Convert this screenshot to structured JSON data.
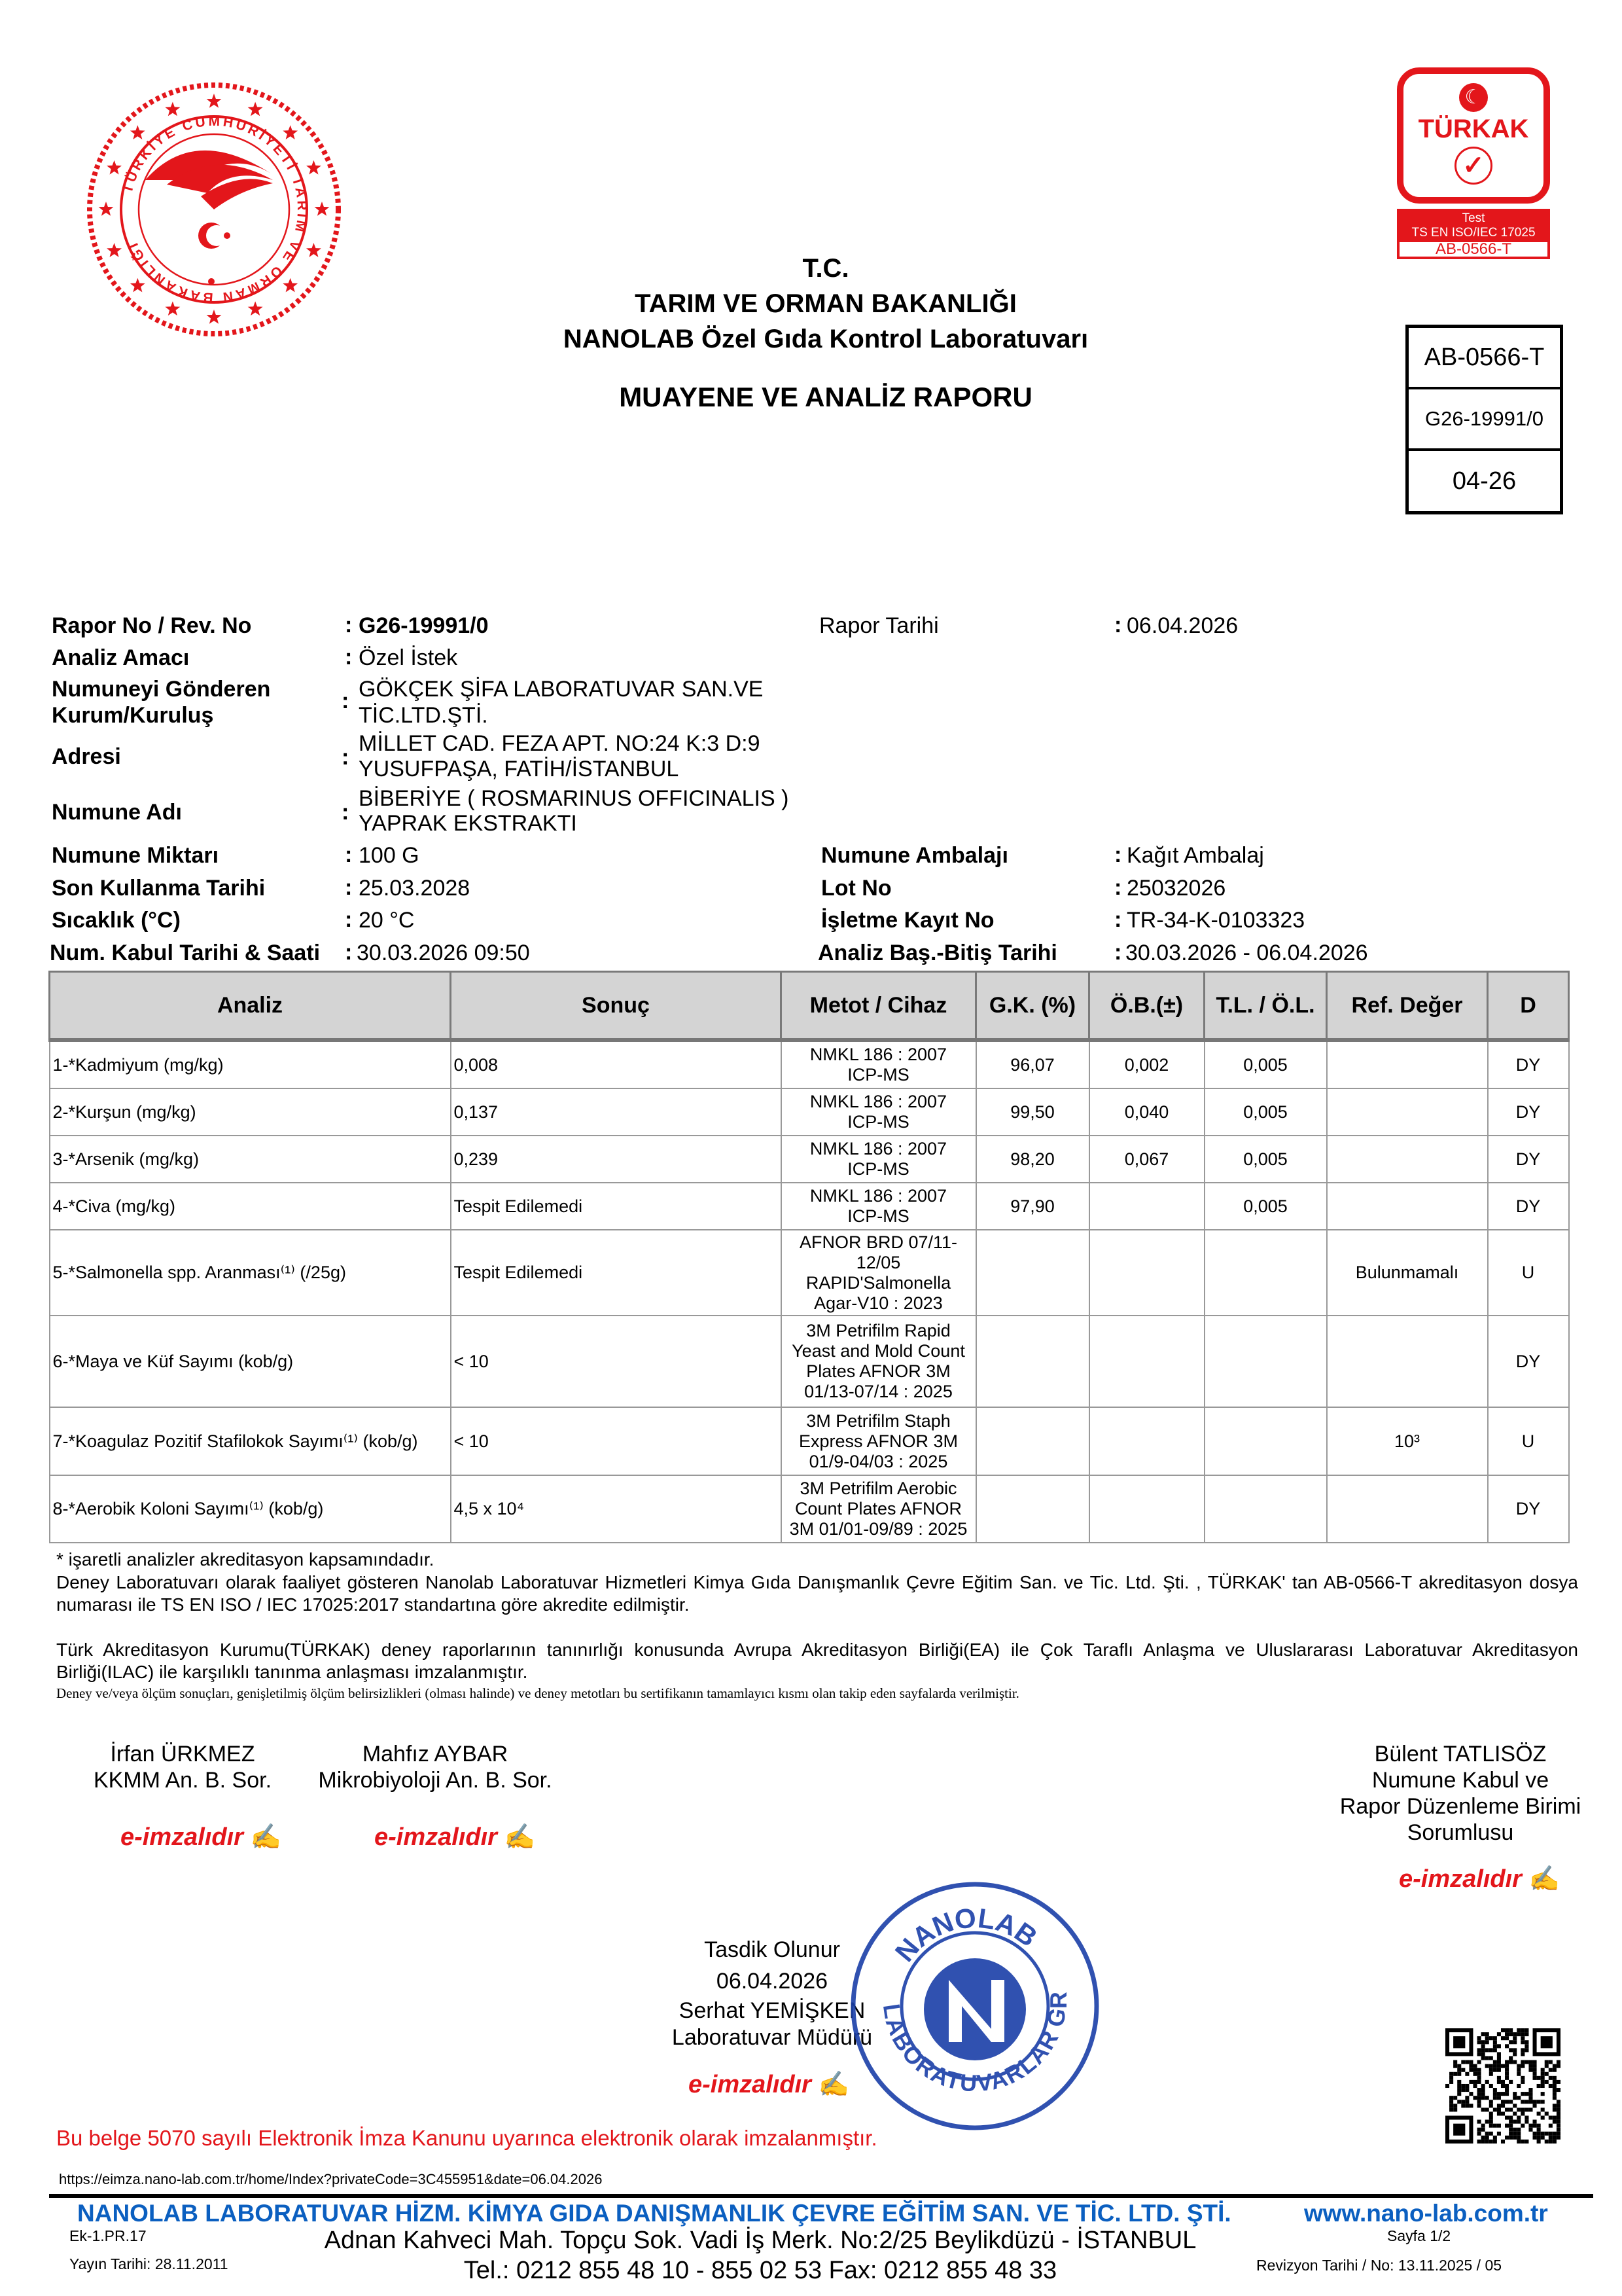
{
  "logos": {
    "ministry_seal_text": "TÜRKİYE CUMHURİYETİ TARIM VE ORMAN BAKANLIĞI",
    "turkak": {
      "brand": "TÜRKAK",
      "line1": "Test",
      "line2": "TS EN ISO/IEC 17025",
      "code": "AB-0566-T"
    },
    "stamp_text_top": "NANOLAB",
    "stamp_text_bottom": "LABORATUVARLAR GRUBU"
  },
  "header": {
    "line1": "T.C.",
    "line2": "TARIM VE ORMAN BAKANLIĞI",
    "line3": "NANOLAB Özel Gıda Kontrol Laboratuvarı",
    "report_title": "MUAYENE VE ANALİZ RAPORU"
  },
  "idbox": [
    "AB-0566-T",
    "G26-19991/0",
    "04-26"
  ],
  "info": {
    "rapor_no_label": "Rapor No / Rev. No",
    "rapor_no": "G26-19991/0",
    "rapor_tarihi_label": "Rapor Tarihi",
    "rapor_tarihi": "06.04.2026",
    "amac_label": "Analiz Amacı",
    "amac": "Özel İstek",
    "gonderen_label1": "Numuneyi Gönderen",
    "gonderen_label2": "Kurum/Kuruluş",
    "gonderen1": "GÖKÇEK ŞİFA LABORATUVAR SAN.VE",
    "gonderen2": "TİC.LTD.ŞTİ.",
    "adres_label": "Adresi",
    "adres1": "MİLLET CAD. FEZA APT. NO:24 K:3 D:9",
    "adres2": "YUSUFPAŞA, FATİH/İSTANBUL",
    "numune_adi_label": "Numune Adı",
    "numune_adi1": "BİBERİYE ( ROSMARINUS OFFICINALIS )",
    "numune_adi2": "YAPRAK EKSTRAKTI",
    "miktar_label": "Numune Miktarı",
    "miktar": "100 G",
    "ambalaj_label": "Numune Ambalajı",
    "ambalaj": "Kağıt Ambalaj",
    "skt_label": "Son Kullanma Tarihi",
    "skt": "25.03.2028",
    "lot_label": "Lot No",
    "lot": "25032026",
    "sicaklik_label": "Sıcaklık (°C)",
    "sicaklik": "20 °C",
    "isletme_label": "İşletme Kayıt No",
    "isletme": "TR-34-K-0103323",
    "kabul_label": "Num. Kabul Tarihi & Saati",
    "kabul": "30.03.2026 09:50",
    "analiz_tarih_label": "Analiz Baş.-Bitiş Tarihi",
    "analiz_tarih": "30.03.2026 - 06.04.2026"
  },
  "table": {
    "headers": [
      "Analiz",
      "Sonuç",
      "Metot / Cihaz",
      "G.K. (%)",
      "Ö.B.(±)",
      "T.L. / Ö.L.",
      "Ref. Değer",
      "D"
    ],
    "rows": [
      [
        "1-*Kadmiyum (mg/kg)",
        "0,008",
        "NMKL 186 : 2007\nICP-MS",
        "96,07",
        "0,002",
        "0,005",
        "",
        "DY"
      ],
      [
        "2-*Kurşun (mg/kg)",
        "0,137",
        "NMKL 186 : 2007\nICP-MS",
        "99,50",
        "0,040",
        "0,005",
        "",
        "DY"
      ],
      [
        "3-*Arsenik (mg/kg)",
        "0,239",
        "NMKL 186 : 2007\nICP-MS",
        "98,20",
        "0,067",
        "0,005",
        "",
        "DY"
      ],
      [
        "4-*Civa (mg/kg)",
        "Tespit Edilemedi",
        "NMKL 186 : 2007\nICP-MS",
        "97,90",
        "",
        "0,005",
        "",
        "DY"
      ],
      [
        "5-*Salmonella spp. Aranması⁽¹⁾ (/25g)",
        "Tespit  Edilemedi",
        "AFNOR BRD 07/11-\n12/05\nRAPID'Salmonella\nAgar-V10 : 2023",
        "",
        "",
        "",
        "Bulunmamalı",
        "U"
      ],
      [
        "6-*Maya ve Küf Sayımı (kob/g)",
        "< 10",
        "3M Petrifilm Rapid\nYeast and Mold Count\nPlates AFNOR 3M\n01/13-07/14 : 2025",
        "",
        "",
        "",
        "",
        "DY"
      ],
      [
        "7-*Koagulaz Pozitif Stafilokok Sayımı⁽¹⁾ (kob/g)",
        "< 10",
        "3M Petrifilm Staph\nExpress AFNOR 3M\n01/9-04/03 : 2025",
        "",
        "",
        "",
        "10³",
        "U"
      ],
      [
        "8-*Aerobik Koloni Sayımı⁽¹⁾ (kob/g)",
        "4,5 x 10⁴",
        "3M Petrifilm Aerobic\nCount Plates AFNOR\n3M 01/01-09/89 : 2025",
        "",
        "",
        "",
        "",
        "DY"
      ]
    ]
  },
  "notes": {
    "n1": "* işaretli analizler akreditasyon kapsamındadır.",
    "n2": "Deney Laboratuvarı olarak faaliyet gösteren Nanolab Laboratuvar Hizmetleri Kimya Gıda Danışmanlık Çevre Eğitim San. ve Tic. Ltd. Şti. , TÜRKAK' tan AB-0566-T akreditasyon dosya numarası ile TS EN ISO / IEC 17025:2017 standartına göre akredite edilmiştir.",
    "n3": "Türk Akreditasyon Kurumu(TÜRKAK) deney raporlarının tanınırlığı konusunda Avrupa Akreditasyon Birliği(EA) ile Çok Taraflı Anlaşma ve Uluslararası Laboratuvar Akreditasyon Birliği(ILAC) ile karşılıklı tanınma anlaşması imzalanmıştır.",
    "n4": "Deney ve/veya ölçüm sonuçları, genişletilmiş ölçüm belirsizlikleri (olması halinde) ve deney metotları bu sertifikanın tamamlayıcı kısmı olan takip eden sayfalarda verilmiştir."
  },
  "signatures": {
    "s1": [
      "İrfan ÜRKMEZ",
      "KKMM An. B. Sor."
    ],
    "s2": [
      "Mahfız AYBAR",
      "Mikrobiyoloji An. B. Sor."
    ],
    "s3": [
      "Bülent TATLISÖZ",
      "Numune Kabul ve",
      "Rapor Düzenleme Birimi",
      "Sorumlusu"
    ],
    "approval": [
      "Tasdik Olunur",
      "06.04.2026",
      "Serhat YEMİŞKEN",
      "Laboratuvar Müdürü"
    ],
    "esign_label": "e-imzalıdır"
  },
  "legal_statement": "Bu belge 5070 sayılı Elektronik İmza Kanunu uyarınca elektronik olarak imzalanmıştır.",
  "verify_url": "https://eimza.nano-lab.com.tr/home/Index?privateCode=3C455951&date=06.04.2026",
  "footer": {
    "company": "NANOLAB LABORATUVAR HİZM. KİMYA GIDA DANIŞMANLIK ÇEVRE EĞİTİM SAN. VE TİC. LTD. ŞTİ.",
    "website": "www.nano-lab.com.tr",
    "form_code": "Ek-1.PR.17",
    "publish_date": "Yayın Tarihi: 28.11.2011",
    "address": "Adnan Kahveci Mah. Topçu Sok. Vadi İş Merk. No:2/25 Beylikdüzü - İSTANBUL",
    "phone": "Tel.: 0212 855 48 10 - 855 02 53 Fax: 0212 855 48 33",
    "page": "Sayfa 1/2",
    "revision": "Revizyon Tarihi / No: 13.11.2025 / 05"
  },
  "colors": {
    "red": "#e3161b",
    "blue": "#0b5fc0",
    "stamp_blue": "#1a3fa8",
    "table_header": "#d4d4d4"
  }
}
